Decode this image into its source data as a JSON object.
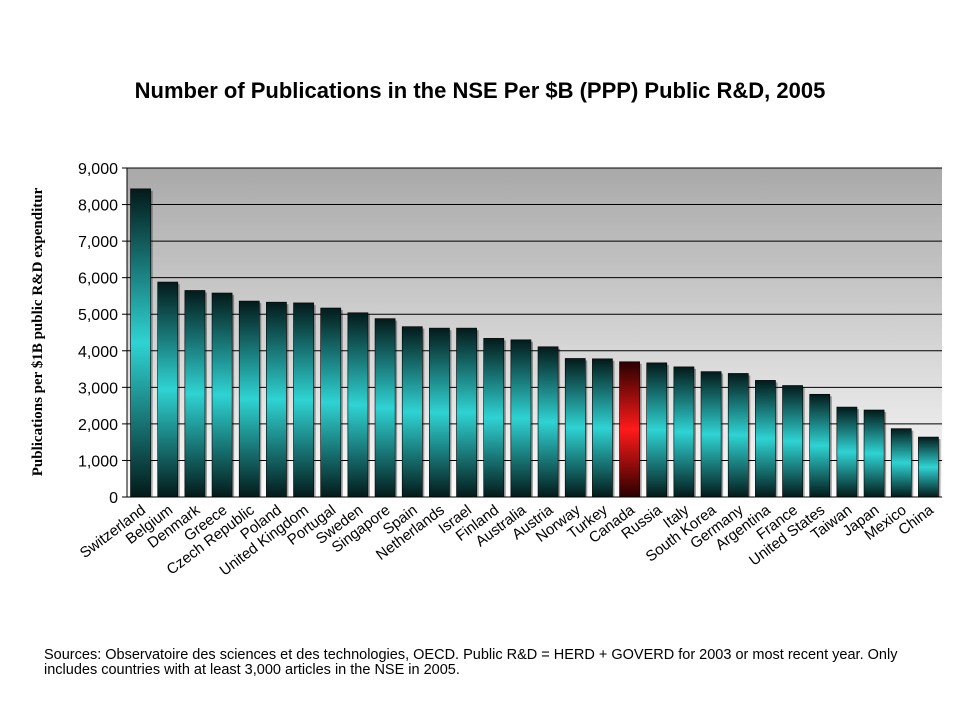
{
  "chart_data": {
    "type": "bar",
    "title": "Number of Publications in the NSE Per $B (PPP) Public R&D, 2005",
    "ylabel": "Publications per $1B public R&D expenditur",
    "xlabel": "",
    "ylim": [
      0,
      9000
    ],
    "yticks": [
      "0",
      "1,000",
      "2,000",
      "3,000",
      "4,000",
      "5,000",
      "6,000",
      "7,000",
      "8,000",
      "9,000"
    ],
    "grid": true,
    "legend": "none",
    "categories": [
      "Switzerland",
      "Belgium",
      "Denmark",
      "Greece",
      "Czech Republic",
      "Poland",
      "United Kingdom",
      "Portugal",
      "Sweden",
      "Singapore",
      "Spain",
      "Netherlands",
      "Israel",
      "Finland",
      "Australia",
      "Austria",
      "Norway",
      "Turkey",
      "Canada",
      "Russia",
      "Italy",
      "South Korea",
      "Germany",
      "Argentina",
      "France",
      "United States",
      "Taiwan",
      "Japan",
      "Mexico",
      "China"
    ],
    "values": [
      8430,
      5880,
      5650,
      5580,
      5360,
      5330,
      5310,
      5170,
      5040,
      4880,
      4660,
      4620,
      4620,
      4340,
      4300,
      4110,
      3790,
      3780,
      3700,
      3670,
      3560,
      3430,
      3380,
      3190,
      3050,
      2810,
      2460,
      2380,
      1870,
      1640
    ],
    "highlight": "Canada",
    "colors": {
      "bar_light": "#2fd3d3",
      "bar_dark": "#031a1a",
      "highlight_light": "#ff1a1a",
      "highlight_dark": "#2a0000",
      "plot_top": "#a9a9a9",
      "plot_bottom": "#fbfbfb"
    }
  },
  "footer": {
    "sources": "Sources: Observatoire des sciences et des technologies, OECD. Public R&D = HERD + GOVERD for 2003 or most recent year. Only includes countries with at least 3,000 articles in the NSE in 2005."
  }
}
